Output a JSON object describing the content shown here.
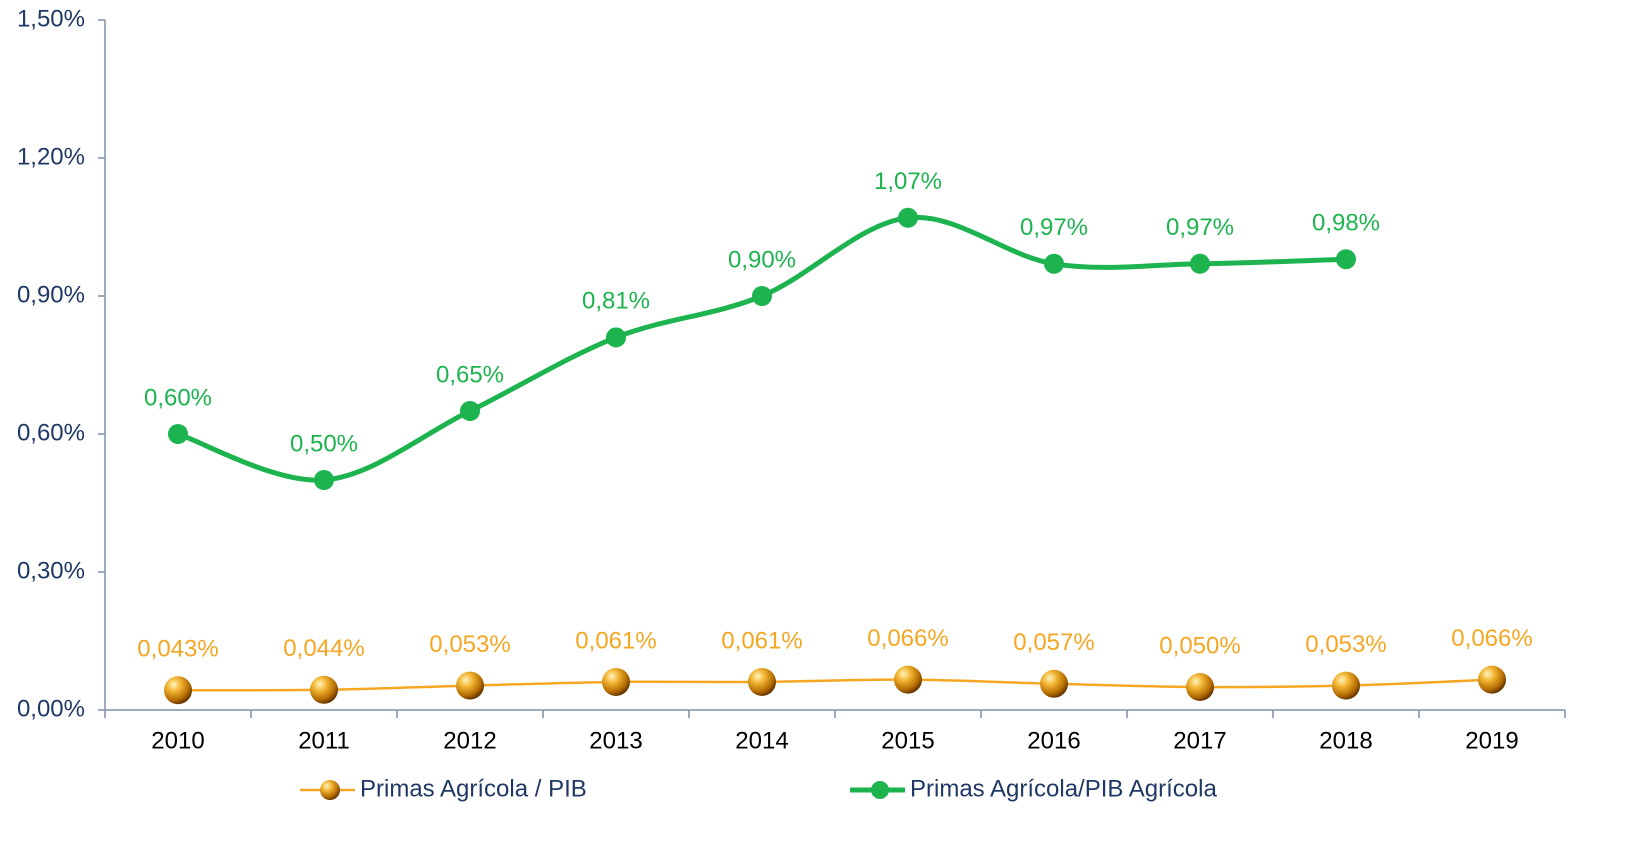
{
  "chart_data": {
    "type": "line",
    "categories": [
      "2010",
      "2011",
      "2012",
      "2013",
      "2014",
      "2015",
      "2016",
      "2017",
      "2018",
      "2019"
    ],
    "series": [
      {
        "name": "Primas Agrícola / PIB",
        "color": "#f5a623",
        "marker_color": "#e8a010",
        "values": [
          0.043,
          0.044,
          0.053,
          0.061,
          0.061,
          0.066,
          0.057,
          0.05,
          0.053,
          0.066
        ],
        "value_labels": [
          "0,043%",
          "0,044%",
          "0,053%",
          "0,061%",
          "0,061%",
          "0,066%",
          "0,057%",
          "0,050%",
          "0,053%",
          "0,066%"
        ]
      },
      {
        "name": "Primas Agrícola/PIB Agrícola",
        "color": "#1db34f",
        "marker_color": "#1db34f",
        "values": [
          0.6,
          0.5,
          0.65,
          0.81,
          0.9,
          1.07,
          0.97,
          0.97,
          0.98,
          null
        ],
        "value_labels": [
          "0,60%",
          "0,50%",
          "0,65%",
          "0,81%",
          "0,90%",
          "1,07%",
          "0,97%",
          "0,97%",
          "0,98%",
          null
        ]
      }
    ],
    "ylim": [
      0,
      1.5
    ],
    "yticks": [
      {
        "value": 0,
        "label": "0,00%"
      },
      {
        "value": 0.3,
        "label": "0,30%"
      },
      {
        "value": 0.6,
        "label": "0,60%"
      },
      {
        "value": 0.9,
        "label": "0,90%"
      },
      {
        "value": 1.2,
        "label": "1,20%"
      },
      {
        "value": 1.5,
        "label": "1,50%"
      }
    ],
    "grid": false
  }
}
